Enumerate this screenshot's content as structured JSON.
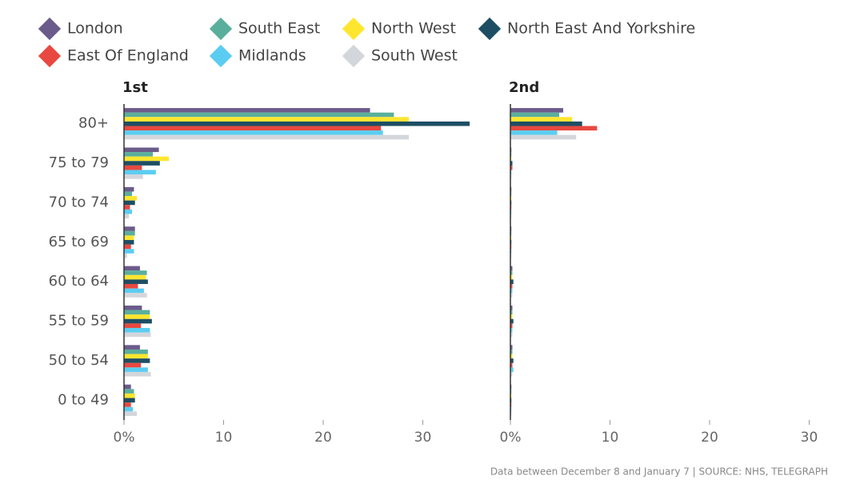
{
  "chart_data": {
    "type": "bar",
    "orientation": "horizontal",
    "footnote": "Data between December 8 and January 7 | SOURCE: NHS, TELEGRAPH",
    "categories": [
      "80+",
      "75 to 79",
      "70 to 74",
      "65 to 69",
      "60 to 64",
      "55 to 59",
      "50 to 54",
      "0 to 49"
    ],
    "series": [
      {
        "name": "London",
        "color": "#6b5b8a"
      },
      {
        "name": "South East",
        "color": "#5aaf9c"
      },
      {
        "name": "North West",
        "color": "#ffe62e"
      },
      {
        "name": "North East And Yorkshire",
        "color": "#1d4e63"
      },
      {
        "name": "East Of England",
        "color": "#e8483f"
      },
      {
        "name": "Midlands",
        "color": "#5bcdf2"
      },
      {
        "name": "South West",
        "color": "#d3d6db"
      }
    ],
    "xlim": [
      0,
      35
    ],
    "xticks": [
      {
        "value": 0,
        "label": "0%"
      },
      10,
      20,
      30
    ],
    "panels": [
      {
        "title": "1st",
        "series": [
          {
            "values": [
              24.7,
              3.5,
              1.0,
              1.1,
              1.6,
              1.8,
              1.6,
              0.7
            ]
          },
          {
            "values": [
              27.1,
              2.9,
              0.8,
              1.1,
              2.3,
              2.6,
              2.4,
              1.0
            ]
          },
          {
            "values": [
              28.6,
              4.5,
              1.3,
              1.0,
              2.2,
              2.6,
              2.4,
              1.1
            ]
          },
          {
            "values": [
              34.7,
              3.6,
              1.1,
              1.0,
              2.4,
              2.8,
              2.6,
              1.1
            ]
          },
          {
            "values": [
              25.8,
              1.8,
              0.6,
              0.7,
              1.4,
              1.7,
              1.7,
              0.7
            ]
          },
          {
            "values": [
              26.0,
              3.2,
              0.8,
              1.0,
              2.0,
              2.6,
              2.4,
              0.9
            ]
          },
          {
            "values": [
              28.6,
              1.9,
              0.5,
              0.3,
              2.3,
              2.7,
              2.7,
              1.3
            ]
          }
        ]
      },
      {
        "title": "2nd",
        "series": [
          {
            "values": [
              5.3,
              0.1,
              0.1,
              0.1,
              0.2,
              0.2,
              0.2,
              0.1
            ]
          },
          {
            "values": [
              4.9,
              0.1,
              0.1,
              0.1,
              0.2,
              0.2,
              0.2,
              0.1
            ]
          },
          {
            "values": [
              6.2,
              0.1,
              0.1,
              0.1,
              0.2,
              0.2,
              0.2,
              0.1
            ]
          },
          {
            "values": [
              7.2,
              0.2,
              0.1,
              0.1,
              0.3,
              0.3,
              0.3,
              0.1
            ]
          },
          {
            "values": [
              8.7,
              0.2,
              0.1,
              0.1,
              0.2,
              0.2,
              0.2,
              0.1
            ]
          },
          {
            "values": [
              4.7,
              0.1,
              0.1,
              0.1,
              0.2,
              0.2,
              0.3,
              0.1
            ]
          },
          {
            "values": [
              6.6,
              0.1,
              0.1,
              0.1,
              0.2,
              0.2,
              0.2,
              0.1
            ]
          }
        ]
      }
    ]
  }
}
